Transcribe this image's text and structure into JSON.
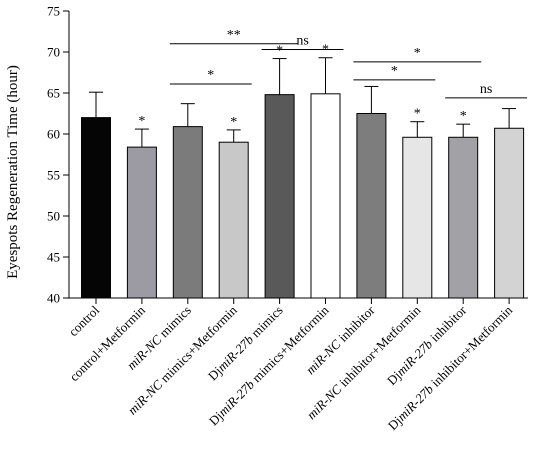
{
  "chart_data": {
    "type": "bar",
    "ylabel": "Eyespots Regeneration Time (hour)",
    "ylim": [
      40,
      75
    ],
    "yticks": [
      40,
      45,
      50,
      55,
      60,
      65,
      70,
      75
    ],
    "categories": [
      {
        "pre": "",
        "italic": "",
        "post": "control"
      },
      {
        "pre": "",
        "italic": "",
        "post": "control+Metformin"
      },
      {
        "pre": "",
        "italic": "miR-NC",
        "post": " mimics"
      },
      {
        "pre": "",
        "italic": "miR-NC",
        "post": " mimics+Metformin"
      },
      {
        "pre": "Dj",
        "italic": "miR-27b",
        "post": " mimics"
      },
      {
        "pre": "Dj",
        "italic": "miR-27b",
        "post": " mimics+Metformin"
      },
      {
        "pre": "",
        "italic": "miR-NC",
        "post": " inhibitor"
      },
      {
        "pre": "",
        "italic": "miR-NC",
        "post": " inhibitor+Metformin"
      },
      {
        "pre": "Dj",
        "italic": "miR-27b",
        "post": " inhibitor"
      },
      {
        "pre": "Dj",
        "italic": "miR-27b",
        "post": " inhibitor+Metformin"
      }
    ],
    "values": [
      62.0,
      58.4,
      60.9,
      59.0,
      64.8,
      64.9,
      62.5,
      59.6,
      59.6,
      60.7
    ],
    "errors": [
      3.1,
      2.2,
      2.8,
      1.5,
      4.4,
      4.4,
      3.3,
      1.9,
      1.6,
      2.4
    ],
    "bar_colors": [
      "#050505",
      "#9c9aa2",
      "#7b7b7b",
      "#c8c8c8",
      "#595959",
      "#ffffff",
      "#7d7d7d",
      "#e6e6e6",
      "#a2a1a6",
      "#d3d3d3"
    ],
    "bar_markers": [
      "",
      "*",
      "",
      "*",
      "*",
      "*",
      "",
      "*",
      "*",
      ""
    ],
    "brackets": [
      {
        "from": 2,
        "to": 3,
        "y": 66.1,
        "label": "*"
      },
      {
        "from": 2,
        "to": 4,
        "y": 71.0,
        "label": "**"
      },
      {
        "from": 4,
        "to": 5,
        "y": 70.3,
        "label": "ns"
      },
      {
        "from": 6,
        "to": 7,
        "y": 66.6,
        "label": "*"
      },
      {
        "from": 6,
        "to": 8,
        "y": 68.8,
        "label": "*"
      },
      {
        "from": 8,
        "to": 9,
        "y": 64.4,
        "label": "ns"
      }
    ]
  }
}
